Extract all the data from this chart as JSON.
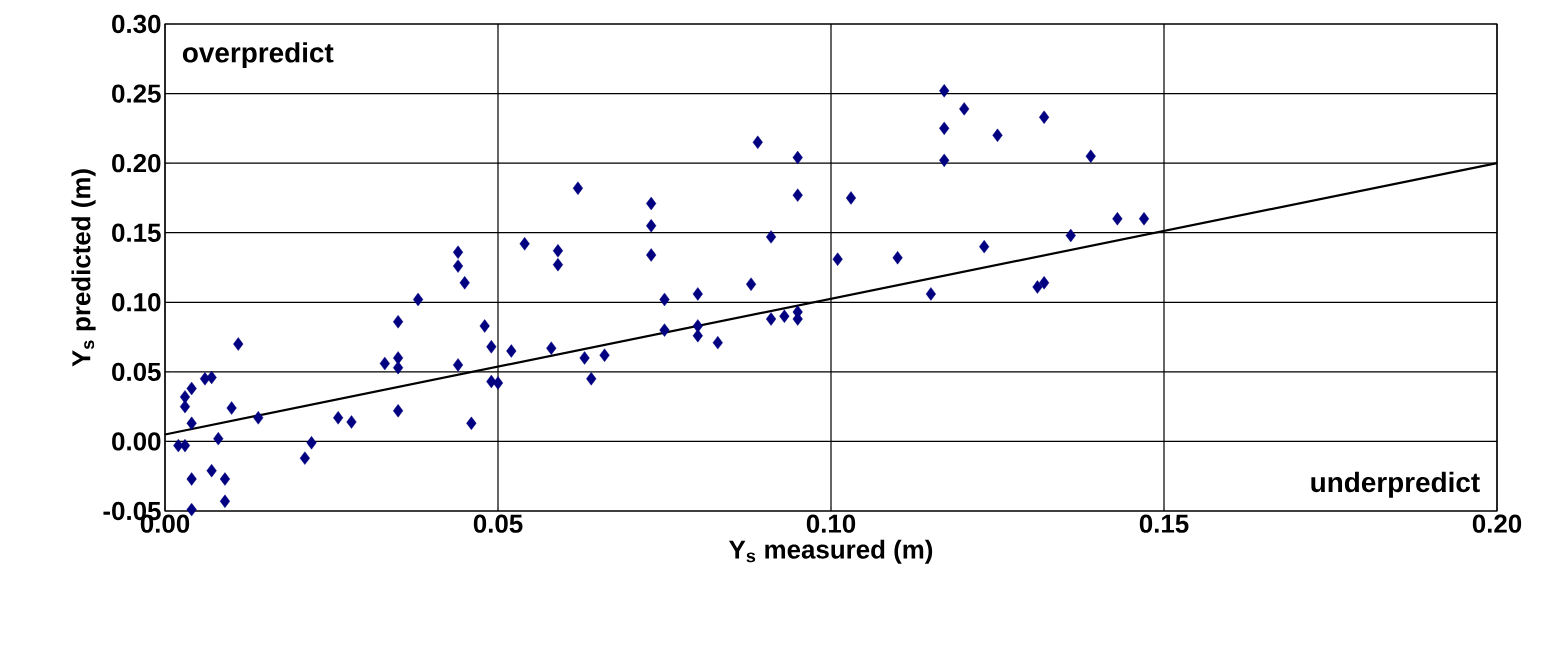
{
  "chart_data": {
    "type": "scatter",
    "xlabel": "Y$_{s}$ measured (m)",
    "ylabel": "Y$_{s}$ predicted (m)",
    "annotations": [
      "overpredict",
      "underpredict"
    ],
    "xlim": [
      0,
      0.2
    ],
    "ylim": [
      -0.05,
      0.3
    ],
    "xticks": [
      {
        "value": 0,
        "label": "0.00"
      },
      {
        "value": 0.05,
        "label": "0.05"
      },
      {
        "value": 0.1,
        "label": "0.10"
      },
      {
        "value": 0.15,
        "label": "0.15"
      },
      {
        "value": 0.2,
        "label": "0.20"
      }
    ],
    "yticks": [
      {
        "value": -0.05,
        "label": "-0.05"
      },
      {
        "value": 0,
        "label": "0.00"
      },
      {
        "value": 0.05,
        "label": "0.05"
      },
      {
        "value": 0.1,
        "label": "0.10"
      },
      {
        "value": 0.15,
        "label": "0.15"
      },
      {
        "value": 0.2,
        "label": "0.20"
      },
      {
        "value": 0.25,
        "label": "0.25"
      },
      {
        "value": 0.3,
        "label": "0.30"
      }
    ],
    "grid": true,
    "marker": "diamond",
    "series": [
      {
        "color": "#000080",
        "x": [
          0.002,
          0.003,
          0.004,
          0.004,
          0.007,
          0.009,
          0.009,
          0.008,
          0.004,
          0.003,
          0.003,
          0.004,
          0.006,
          0.007,
          0.01,
          0.011,
          0.014,
          0.021,
          0.022,
          0.026,
          0.028,
          0.033,
          0.035,
          0.035,
          0.035,
          0.035,
          0.038,
          0.044,
          0.044,
          0.045,
          0.044,
          0.048,
          0.049,
          0.049,
          0.05,
          0.046,
          0.052,
          0.054,
          0.059,
          0.059,
          0.058,
          0.062,
          0.063,
          0.064,
          0.066,
          0.073,
          0.073,
          0.073,
          0.089,
          0.095,
          0.095,
          0.091,
          0.088,
          0.075,
          0.08,
          0.075,
          0.08,
          0.08,
          0.083,
          0.091,
          0.093,
          0.095,
          0.095,
          0.101,
          0.103,
          0.11,
          0.115,
          0.117,
          0.12,
          0.117,
          0.117,
          0.123,
          0.125,
          0.132,
          0.139,
          0.143,
          0.147,
          0.136,
          0.131,
          0.132
        ],
        "values": [
          -0.003,
          -0.003,
          -0.049,
          -0.027,
          -0.021,
          -0.027,
          -0.043,
          0.002,
          0.013,
          0.025,
          0.032,
          0.038,
          0.045,
          0.046,
          0.024,
          0.07,
          0.017,
          -0.012,
          -0.001,
          0.017,
          0.014,
          0.056,
          0.06,
          0.053,
          0.022,
          0.086,
          0.102,
          0.136,
          0.126,
          0.114,
          0.055,
          0.083,
          0.068,
          0.043,
          0.042,
          0.013,
          0.065,
          0.142,
          0.137,
          0.127,
          0.067,
          0.182,
          0.06,
          0.045,
          0.062,
          0.171,
          0.155,
          0.134,
          0.215,
          0.204,
          0.177,
          0.147,
          0.113,
          0.102,
          0.106,
          0.08,
          0.083,
          0.076,
          0.071,
          0.088,
          0.09,
          0.093,
          0.088,
          0.131,
          0.175,
          0.132,
          0.106,
          0.252,
          0.239,
          0.225,
          0.202,
          0.14,
          0.22,
          0.233,
          0.205,
          0.16,
          0.16,
          0.148,
          0.111,
          0.114
        ]
      },
      {
        "type": "line",
        "color": "#000000",
        "marker": "none",
        "line_style": "solid",
        "x": [
          0,
          0.2
        ],
        "values": [
          0.005,
          0.2
        ]
      }
    ]
  }
}
